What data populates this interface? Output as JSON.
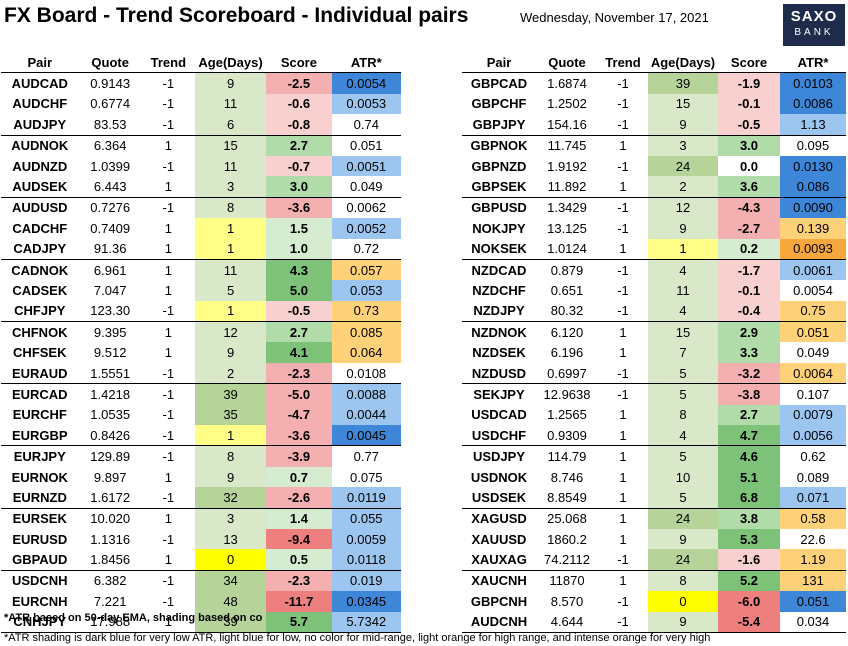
{
  "header": {
    "title": "FX Board - Trend Scoreboard - Individual pairs",
    "date": "Wednesday, November 17, 2021",
    "logo_line1": "SAXO",
    "logo_line2": "BANK"
  },
  "columns": [
    "Pair",
    "Quote",
    "Trend",
    "Age(Days)",
    "Score",
    "ATR*"
  ],
  "colors": {
    "age_green": "#d8e8c8",
    "age_green_strong": "#b6d39a",
    "age_yellow": "#ffff88",
    "age_yellow_strong": "#ffff00",
    "score_pos_light": "#d6ecd0",
    "score_pos_mid": "#b2dbaa",
    "score_pos_strong": "#7ec27a",
    "score_neg_light": "#f8d0d0",
    "score_neg_mid": "#f4b0b0",
    "score_neg_strong": "#ee7f7f",
    "atr_dark_blue": "#3d86d8",
    "atr_light_blue": "#9cc6f0",
    "atr_light_orange": "#ffd27a",
    "atr_orange": "#f8a73c"
  },
  "left_rows": [
    {
      "pair": "AUDCAD",
      "quote": "0.9143",
      "trend": "-1",
      "age": "9",
      "score": "-2.5",
      "atr": "0.0054",
      "age_c": "age_green",
      "score_c": "score_neg_mid",
      "atr_c": "atr_dark_blue"
    },
    {
      "pair": "AUDCHF",
      "quote": "0.6774",
      "trend": "-1",
      "age": "11",
      "score": "-0.6",
      "atr": "0.0053",
      "age_c": "age_green",
      "score_c": "score_neg_light",
      "atr_c": "atr_light_blue"
    },
    {
      "pair": "AUDJPY",
      "quote": "83.53",
      "trend": "-1",
      "age": "6",
      "score": "-0.8",
      "atr": "0.74",
      "age_c": "age_green",
      "score_c": "score_neg_light",
      "atr_c": ""
    },
    {
      "pair": "AUDNOK",
      "quote": "6.364",
      "trend": "1",
      "age": "15",
      "score": "2.7",
      "atr": "0.051",
      "age_c": "age_green",
      "score_c": "score_pos_mid",
      "atr_c": "",
      "sep": true
    },
    {
      "pair": "AUDNZD",
      "quote": "1.0399",
      "trend": "-1",
      "age": "11",
      "score": "-0.7",
      "atr": "0.0051",
      "age_c": "age_green",
      "score_c": "score_neg_light",
      "atr_c": "atr_light_blue"
    },
    {
      "pair": "AUDSEK",
      "quote": "6.443",
      "trend": "1",
      "age": "3",
      "score": "3.0",
      "atr": "0.049",
      "age_c": "age_green",
      "score_c": "score_pos_mid",
      "atr_c": ""
    },
    {
      "pair": "AUDUSD",
      "quote": "0.7276",
      "trend": "-1",
      "age": "8",
      "score": "-3.6",
      "atr": "0.0062",
      "age_c": "age_green",
      "score_c": "score_neg_mid",
      "atr_c": "",
      "sep": true
    },
    {
      "pair": "CADCHF",
      "quote": "0.7409",
      "trend": "1",
      "age": "1",
      "score": "1.5",
      "atr": "0.0052",
      "age_c": "age_yellow",
      "score_c": "score_pos_light",
      "atr_c": "atr_light_blue"
    },
    {
      "pair": "CADJPY",
      "quote": "91.36",
      "trend": "1",
      "age": "1",
      "score": "1.0",
      "atr": "0.72",
      "age_c": "age_yellow",
      "score_c": "score_pos_light",
      "atr_c": ""
    },
    {
      "pair": "CADNOK",
      "quote": "6.961",
      "trend": "1",
      "age": "11",
      "score": "4.3",
      "atr": "0.057",
      "age_c": "age_green",
      "score_c": "score_pos_strong",
      "atr_c": "atr_light_orange",
      "sep": true
    },
    {
      "pair": "CADSEK",
      "quote": "7.047",
      "trend": "1",
      "age": "5",
      "score": "5.0",
      "atr": "0.053",
      "age_c": "age_green",
      "score_c": "score_pos_strong",
      "atr_c": "atr_light_blue"
    },
    {
      "pair": "CHFJPY",
      "quote": "123.30",
      "trend": "-1",
      "age": "1",
      "score": "-0.5",
      "atr": "0.73",
      "age_c": "age_yellow",
      "score_c": "score_neg_light",
      "atr_c": "atr_light_orange"
    },
    {
      "pair": "CHFNOK",
      "quote": "9.395",
      "trend": "1",
      "age": "12",
      "score": "2.7",
      "atr": "0.085",
      "age_c": "age_green",
      "score_c": "score_pos_mid",
      "atr_c": "atr_light_orange",
      "sep": true
    },
    {
      "pair": "CHFSEK",
      "quote": "9.512",
      "trend": "1",
      "age": "9",
      "score": "4.1",
      "atr": "0.064",
      "age_c": "age_green",
      "score_c": "score_pos_strong",
      "atr_c": "atr_light_orange"
    },
    {
      "pair": "EURAUD",
      "quote": "1.5551",
      "trend": "-1",
      "age": "2",
      "score": "-2.3",
      "atr": "0.0108",
      "age_c": "age_green",
      "score_c": "score_neg_mid",
      "atr_c": ""
    },
    {
      "pair": "EURCAD",
      "quote": "1.4218",
      "trend": "-1",
      "age": "39",
      "score": "-5.0",
      "atr": "0.0088",
      "age_c": "age_green_strong",
      "score_c": "score_neg_mid",
      "atr_c": "atr_light_blue",
      "sep": true
    },
    {
      "pair": "EURCHF",
      "quote": "1.0535",
      "trend": "-1",
      "age": "35",
      "score": "-4.7",
      "atr": "0.0044",
      "age_c": "age_green_strong",
      "score_c": "score_neg_mid",
      "atr_c": "atr_light_blue"
    },
    {
      "pair": "EURGBP",
      "quote": "0.8426",
      "trend": "-1",
      "age": "1",
      "score": "-3.6",
      "atr": "0.0045",
      "age_c": "age_yellow",
      "score_c": "score_neg_mid",
      "atr_c": "atr_dark_blue"
    },
    {
      "pair": "EURJPY",
      "quote": "129.89",
      "trend": "-1",
      "age": "8",
      "score": "-3.9",
      "atr": "0.77",
      "age_c": "age_green",
      "score_c": "score_neg_mid",
      "atr_c": "",
      "sep": true
    },
    {
      "pair": "EURNOK",
      "quote": "9.897",
      "trend": "1",
      "age": "9",
      "score": "0.7",
      "atr": "0.075",
      "age_c": "age_green",
      "score_c": "score_pos_light",
      "atr_c": ""
    },
    {
      "pair": "EURNZD",
      "quote": "1.6172",
      "trend": "-1",
      "age": "32",
      "score": "-2.6",
      "atr": "0.0119",
      "age_c": "age_green_strong",
      "score_c": "score_neg_mid",
      "atr_c": "atr_light_blue"
    },
    {
      "pair": "EURSEK",
      "quote": "10.020",
      "trend": "1",
      "age": "3",
      "score": "1.4",
      "atr": "0.055",
      "age_c": "age_green",
      "score_c": "score_pos_light",
      "atr_c": "atr_light_blue",
      "sep": true
    },
    {
      "pair": "EURUSD",
      "quote": "1.1316",
      "trend": "-1",
      "age": "13",
      "score": "-9.4",
      "atr": "0.0059",
      "age_c": "age_green",
      "score_c": "score_neg_strong",
      "atr_c": "atr_light_blue"
    },
    {
      "pair": "GBPAUD",
      "quote": "1.8456",
      "trend": "1",
      "age": "0",
      "score": "0.5",
      "atr": "0.0118",
      "age_c": "age_yellow_strong",
      "score_c": "score_pos_light",
      "atr_c": "atr_light_blue"
    },
    {
      "pair": "USDCNH",
      "quote": "6.382",
      "trend": "-1",
      "age": "34",
      "score": "-2.3",
      "atr": "0.019",
      "age_c": "age_green_strong",
      "score_c": "score_neg_mid",
      "atr_c": "atr_light_blue",
      "sep": true
    },
    {
      "pair": "EURCNH",
      "quote": "7.221",
      "trend": "-1",
      "age": "48",
      "score": "-11.7",
      "atr": "0.0345",
      "age_c": "age_green_strong",
      "score_c": "score_neg_strong",
      "atr_c": "atr_dark_blue"
    },
    {
      "pair": "CNHJPY",
      "quote": "17.988",
      "trend": "1",
      "age": "39",
      "score": "5.7",
      "atr": "5.7342",
      "age_c": "age_green_strong",
      "score_c": "score_pos_strong",
      "atr_c": "atr_light_blue",
      "last": true
    }
  ],
  "right_rows": [
    {
      "pair": "GBPCAD",
      "quote": "1.6874",
      "trend": "-1",
      "age": "39",
      "score": "-1.9",
      "atr": "0.0103",
      "age_c": "age_green_strong",
      "score_c": "score_neg_light",
      "atr_c": "atr_dark_blue"
    },
    {
      "pair": "GBPCHF",
      "quote": "1.2502",
      "trend": "-1",
      "age": "15",
      "score": "-0.1",
      "atr": "0.0086",
      "age_c": "age_green",
      "score_c": "score_neg_light",
      "atr_c": "atr_dark_blue"
    },
    {
      "pair": "GBPJPY",
      "quote": "154.16",
      "trend": "-1",
      "age": "9",
      "score": "-0.5",
      "atr": "1.13",
      "age_c": "age_green",
      "score_c": "score_neg_light",
      "atr_c": "atr_light_blue"
    },
    {
      "pair": "GBPNOK",
      "quote": "11.745",
      "trend": "1",
      "age": "3",
      "score": "3.0",
      "atr": "0.095",
      "age_c": "age_green",
      "score_c": "score_pos_mid",
      "atr_c": "",
      "sep": true
    },
    {
      "pair": "GBPNZD",
      "quote": "1.9192",
      "trend": "-1",
      "age": "24",
      "score": "0.0",
      "atr": "0.0130",
      "age_c": "age_green_strong",
      "score_c": "",
      "atr_c": "atr_dark_blue"
    },
    {
      "pair": "GBPSEK",
      "quote": "11.892",
      "trend": "1",
      "age": "2",
      "score": "3.6",
      "atr": "0.086",
      "age_c": "age_green",
      "score_c": "score_pos_mid",
      "atr_c": "atr_dark_blue"
    },
    {
      "pair": "GBPUSD",
      "quote": "1.3429",
      "trend": "-1",
      "age": "12",
      "score": "-4.3",
      "atr": "0.0090",
      "age_c": "age_green",
      "score_c": "score_neg_mid",
      "atr_c": "atr_dark_blue",
      "sep": true
    },
    {
      "pair": "NOKJPY",
      "quote": "13.125",
      "trend": "-1",
      "age": "9",
      "score": "-2.7",
      "atr": "0.139",
      "age_c": "age_green",
      "score_c": "score_neg_mid",
      "atr_c": "atr_light_orange"
    },
    {
      "pair": "NOKSEK",
      "quote": "1.0124",
      "trend": "1",
      "age": "1",
      "score": "0.2",
      "atr": "0.0093",
      "age_c": "age_yellow",
      "score_c": "score_pos_light",
      "atr_c": "atr_orange"
    },
    {
      "pair": "NZDCAD",
      "quote": "0.879",
      "trend": "-1",
      "age": "4",
      "score": "-1.7",
      "atr": "0.0061",
      "age_c": "age_green",
      "score_c": "score_neg_light",
      "atr_c": "atr_light_blue",
      "sep": true
    },
    {
      "pair": "NZDCHF",
      "quote": "0.651",
      "trend": "-1",
      "age": "11",
      "score": "-0.1",
      "atr": "0.0054",
      "age_c": "age_green",
      "score_c": "score_neg_light",
      "atr_c": ""
    },
    {
      "pair": "NZDJPY",
      "quote": "80.32",
      "trend": "-1",
      "age": "4",
      "score": "-0.4",
      "atr": "0.75",
      "age_c": "age_green",
      "score_c": "score_neg_light",
      "atr_c": "atr_light_orange"
    },
    {
      "pair": "NZDNOK",
      "quote": "6.120",
      "trend": "1",
      "age": "15",
      "score": "2.9",
      "atr": "0.051",
      "age_c": "age_green",
      "score_c": "score_pos_mid",
      "atr_c": "atr_light_orange",
      "sep": true
    },
    {
      "pair": "NZDSEK",
      "quote": "6.196",
      "trend": "1",
      "age": "7",
      "score": "3.3",
      "atr": "0.049",
      "age_c": "age_green",
      "score_c": "score_pos_mid",
      "atr_c": ""
    },
    {
      "pair": "NZDUSD",
      "quote": "0.6997",
      "trend": "-1",
      "age": "5",
      "score": "-3.2",
      "atr": "0.0064",
      "age_c": "age_green",
      "score_c": "score_neg_mid",
      "atr_c": "atr_light_orange"
    },
    {
      "pair": "SEKJPY",
      "quote": "12.9638",
      "trend": "-1",
      "age": "5",
      "score": "-3.8",
      "atr": "0.107",
      "age_c": "age_green",
      "score_c": "score_neg_mid",
      "atr_c": "",
      "sep": true
    },
    {
      "pair": "USDCAD",
      "quote": "1.2565",
      "trend": "1",
      "age": "8",
      "score": "2.7",
      "atr": "0.0079",
      "age_c": "age_green",
      "score_c": "score_pos_mid",
      "atr_c": "atr_light_blue"
    },
    {
      "pair": "USDCHF",
      "quote": "0.9309",
      "trend": "1",
      "age": "4",
      "score": "4.7",
      "atr": "0.0056",
      "age_c": "age_green",
      "score_c": "score_pos_strong",
      "atr_c": "atr_light_blue"
    },
    {
      "pair": "USDJPY",
      "quote": "114.79",
      "trend": "1",
      "age": "5",
      "score": "4.6",
      "atr": "0.62",
      "age_c": "age_green",
      "score_c": "score_pos_strong",
      "atr_c": "",
      "sep": true
    },
    {
      "pair": "USDNOK",
      "quote": "8.746",
      "trend": "1",
      "age": "10",
      "score": "5.1",
      "atr": "0.089",
      "age_c": "age_green",
      "score_c": "score_pos_strong",
      "atr_c": ""
    },
    {
      "pair": "USDSEK",
      "quote": "8.8549",
      "trend": "1",
      "age": "5",
      "score": "6.8",
      "atr": "0.071",
      "age_c": "age_green",
      "score_c": "score_pos_strong",
      "atr_c": "atr_light_blue"
    },
    {
      "pair": "XAGUSD",
      "quote": "25.068",
      "trend": "1",
      "age": "24",
      "score": "3.8",
      "atr": "0.58",
      "age_c": "age_green_strong",
      "score_c": "score_pos_mid",
      "atr_c": "atr_light_orange",
      "sep": true
    },
    {
      "pair": "XAUUSD",
      "quote": "1860.2",
      "trend": "1",
      "age": "9",
      "score": "5.3",
      "atr": "22.6",
      "age_c": "age_green",
      "score_c": "score_pos_strong",
      "atr_c": ""
    },
    {
      "pair": "XAUXAG",
      "quote": "74.2112",
      "trend": "-1",
      "age": "24",
      "score": "-1.6",
      "atr": "1.19",
      "age_c": "age_green_strong",
      "score_c": "score_neg_light",
      "atr_c": "atr_light_orange"
    },
    {
      "pair": "XAUCNH",
      "quote": "11870",
      "trend": "1",
      "age": "8",
      "score": "5.2",
      "atr": "131",
      "age_c": "age_green",
      "score_c": "score_pos_strong",
      "atr_c": "atr_light_orange",
      "sep": true
    },
    {
      "pair": "GBPCNH",
      "quote": "8.570",
      "trend": "-1",
      "age": "0",
      "score": "-6.0",
      "atr": "0.051",
      "age_c": "age_yellow_strong",
      "score_c": "score_neg_strong",
      "atr_c": "atr_dark_blue"
    },
    {
      "pair": "AUDCNH",
      "quote": "4.644",
      "trend": "-1",
      "age": "9",
      "score": "-5.4",
      "atr": "0.034",
      "age_c": "age_green",
      "score_c": "score_neg_strong",
      "atr_c": "",
      "last": true
    }
  ],
  "footnotes": {
    "line1": "*ATR based on 50-day EMA, shading based on co",
    "line2": "*ATR shading is dark blue for very low ATR, light blue for low, no color for mid-range, light orange for high range, and intense orange for very high"
  }
}
